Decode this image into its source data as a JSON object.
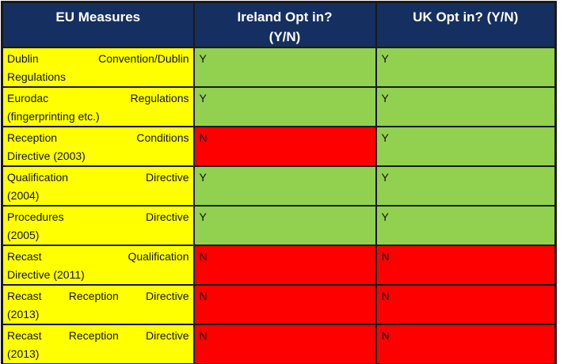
{
  "table": {
    "headers": [
      {
        "lines": [
          "EU Measures"
        ]
      },
      {
        "lines": [
          "Ireland Opt in?",
          "(Y/N)"
        ]
      },
      {
        "lines": [
          "UK Opt in? (Y/N)"
        ]
      }
    ],
    "rows": [
      {
        "measure_lines": [
          "Dublin Convention/Dublin",
          "Regulations"
        ],
        "ireland": "Y",
        "uk": "Y"
      },
      {
        "measure_lines": [
          "Eurodac Regulations",
          "(fingerprinting etc.)"
        ],
        "ireland": "Y",
        "uk": "Y"
      },
      {
        "measure_lines": [
          "Reception Conditions",
          "Directive (2003)"
        ],
        "ireland": "N",
        "uk": "Y"
      },
      {
        "measure_lines": [
          "Qualification Directive",
          "(2004)"
        ],
        "ireland": "Y",
        "uk": "Y"
      },
      {
        "measure_lines": [
          "Procedures Directive",
          "(2005)"
        ],
        "ireland": "Y",
        "uk": "Y"
      },
      {
        "measure_lines": [
          "Recast Qualification",
          "Directive (2011)"
        ],
        "ireland": "N",
        "uk": "N"
      },
      {
        "measure_lines": [
          "Recast Reception Directive",
          "(2013)"
        ],
        "ireland": "N",
        "uk": "N"
      },
      {
        "measure_lines": [
          "Recast Reception Directive",
          "(2013)"
        ],
        "ireland": "N",
        "uk": "N"
      }
    ]
  },
  "colors": {
    "header_bg": "#152F60",
    "header_text": "#FFFFFF",
    "measure_bg": "#FFFF00",
    "yes_bg": "#92D050",
    "no_bg": "#FF0000",
    "cell_text": "#111111",
    "border": "#1A1A1A"
  }
}
